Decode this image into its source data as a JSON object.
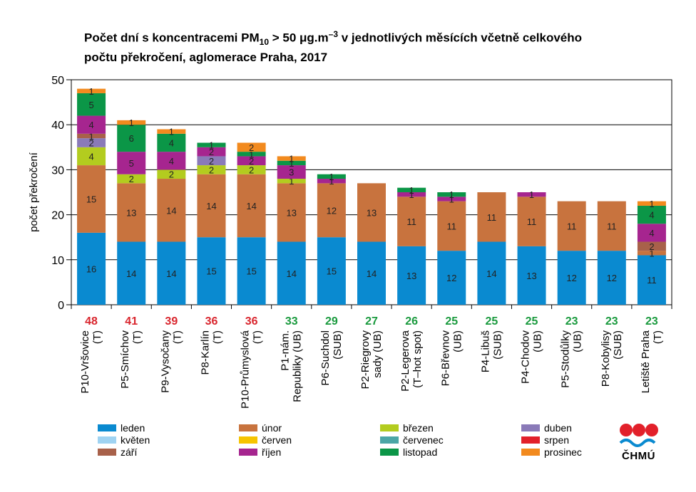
{
  "title": {
    "line1_pre": "Počet dní s koncentracemi PM",
    "line1_sub": "10",
    "line1_mid": " > 50 μg.m",
    "line1_sup": "–3",
    "line1_post": " v jednotlivých měsících včetně celkového",
    "line2": "počtu překročení, aglomerace Praha, 2017"
  },
  "logo_text": "ČHMÚ",
  "chart_data": {
    "type": "bar",
    "stacked": true,
    "ylabel": "počet překročení",
    "ylim": [
      0,
      50
    ],
    "yticks": [
      0,
      10,
      20,
      30,
      40,
      50
    ],
    "grid": true,
    "legend_position": "bottom",
    "categories": [
      "P10-Vršovice (T)",
      "P5-Smíchov (T)",
      "P9-Vysočany (T)",
      "P8-Karlín (T)",
      "P10-Průmyslová (T)",
      "P1-nám. Republiky (UB)",
      "P6-Suchdol (SUB)",
      "P2-Riegrovy sady (UB)",
      "P2-Legerova (T-hot spot)",
      "P6-Břevnov (UB)",
      "P4-Libuš (SUB)",
      "P4-Chodov (UB)",
      "P5-Stodůlky (UB)",
      "P8-Kobylisy (SUB)",
      "Letiště Praha (T)"
    ],
    "category_lines": [
      [
        "P10-Vršovice",
        "(T)"
      ],
      [
        "P5-Smíchov",
        "(T)"
      ],
      [
        "P9-Vysočany",
        "(T)"
      ],
      [
        "P8-Karlín",
        "(T)"
      ],
      [
        "P10-Průmyslová",
        "(T)"
      ],
      [
        "P1-nám.",
        "Republiky (UB)"
      ],
      [
        "P6-Suchdol",
        "(SUB)"
      ],
      [
        "P2-Riegrovy",
        "sady (UB)"
      ],
      [
        "P2-Legerova",
        "(T–hot spot)"
      ],
      [
        "P6-Břevnov",
        "(UB)"
      ],
      [
        "P4-Libuš",
        "(SUB)"
      ],
      [
        "P4-Chodov",
        "(UB)"
      ],
      [
        "P5-Stodůlky",
        "(UB)"
      ],
      [
        "P8-Kobylisy",
        "(SUB)"
      ],
      [
        "Letiště Praha",
        "(T)"
      ]
    ],
    "totals": [
      "48",
      "41",
      "39",
      "36",
      "36",
      "33",
      "29",
      "27",
      "26",
      "25",
      "25",
      "25",
      "23",
      "23",
      "23"
    ],
    "total_colors": [
      "#d9262e",
      "#d9262e",
      "#d9262e",
      "#d9262e",
      "#d9262e",
      "#1a9a3e",
      "#1a9a3e",
      "#1a9a3e",
      "#1a9a3e",
      "#1a9a3e",
      "#1a9a3e",
      "#1a9a3e",
      "#1a9a3e",
      "#1a9a3e",
      "#1a9a3e"
    ],
    "series": [
      {
        "name": "leden",
        "color": "#0a8ad0",
        "values": [
          16,
          14,
          14,
          15,
          15,
          14,
          15,
          14,
          13,
          12,
          14,
          13,
          12,
          12,
          11
        ]
      },
      {
        "name": "únor",
        "color": "#c8733e",
        "values": [
          15,
          13,
          14,
          14,
          14,
          13,
          12,
          13,
          11,
          11,
          11,
          11,
          11,
          11,
          1
        ]
      },
      {
        "name": "březen",
        "color": "#b3cc1f",
        "values": [
          4,
          2,
          2,
          2,
          2,
          1,
          0,
          0,
          0,
          0,
          0,
          0,
          0,
          0,
          0
        ]
      },
      {
        "name": "duben",
        "color": "#8a7ab8",
        "values": [
          2,
          0,
          0,
          2,
          0,
          0,
          0,
          0,
          0,
          0,
          0,
          0,
          0,
          0,
          0
        ]
      },
      {
        "name": "květen",
        "color": "#9fd3f2",
        "values": [
          0,
          0,
          0,
          0,
          0,
          0,
          0,
          0,
          0,
          0,
          0,
          0,
          0,
          0,
          0
        ]
      },
      {
        "name": "červen",
        "color": "#f6c400",
        "values": [
          0,
          0,
          0,
          0,
          0,
          0,
          0,
          0,
          0,
          0,
          0,
          0,
          0,
          0,
          0
        ]
      },
      {
        "name": "červenec",
        "color": "#4ba6a6",
        "values": [
          0,
          0,
          0,
          0,
          0,
          0,
          0,
          0,
          0,
          0,
          0,
          0,
          0,
          0,
          0
        ]
      },
      {
        "name": "srpen",
        "color": "#e2202a",
        "values": [
          0,
          0,
          0,
          0,
          0,
          0,
          0,
          0,
          0,
          0,
          0,
          0,
          0,
          0,
          0
        ]
      },
      {
        "name": "září",
        "color": "#a8614a",
        "values": [
          1,
          0,
          0,
          0,
          0,
          0,
          0,
          0,
          0,
          0,
          0,
          0,
          0,
          0,
          2
        ]
      },
      {
        "name": "říjen",
        "color": "#a6258f",
        "values": [
          4,
          5,
          4,
          2,
          2,
          3,
          1,
          0,
          1,
          1,
          0,
          1,
          0,
          0,
          4
        ]
      },
      {
        "name": "listopad",
        "color": "#0b9647",
        "values": [
          5,
          6,
          4,
          1,
          1,
          1,
          1,
          0,
          1,
          1,
          0,
          0,
          0,
          0,
          4
        ]
      },
      {
        "name": "prosinec",
        "color": "#f28a1e",
        "values": [
          1,
          1,
          1,
          0,
          2,
          1,
          0,
          0,
          0,
          0,
          0,
          0,
          0,
          0,
          1
        ]
      }
    ],
    "legend_order": [
      "leden",
      "únor",
      "březen",
      "duben",
      "květen",
      "červen",
      "červenec",
      "srpen",
      "září",
      "říjen",
      "listopad",
      "prosinec"
    ]
  }
}
